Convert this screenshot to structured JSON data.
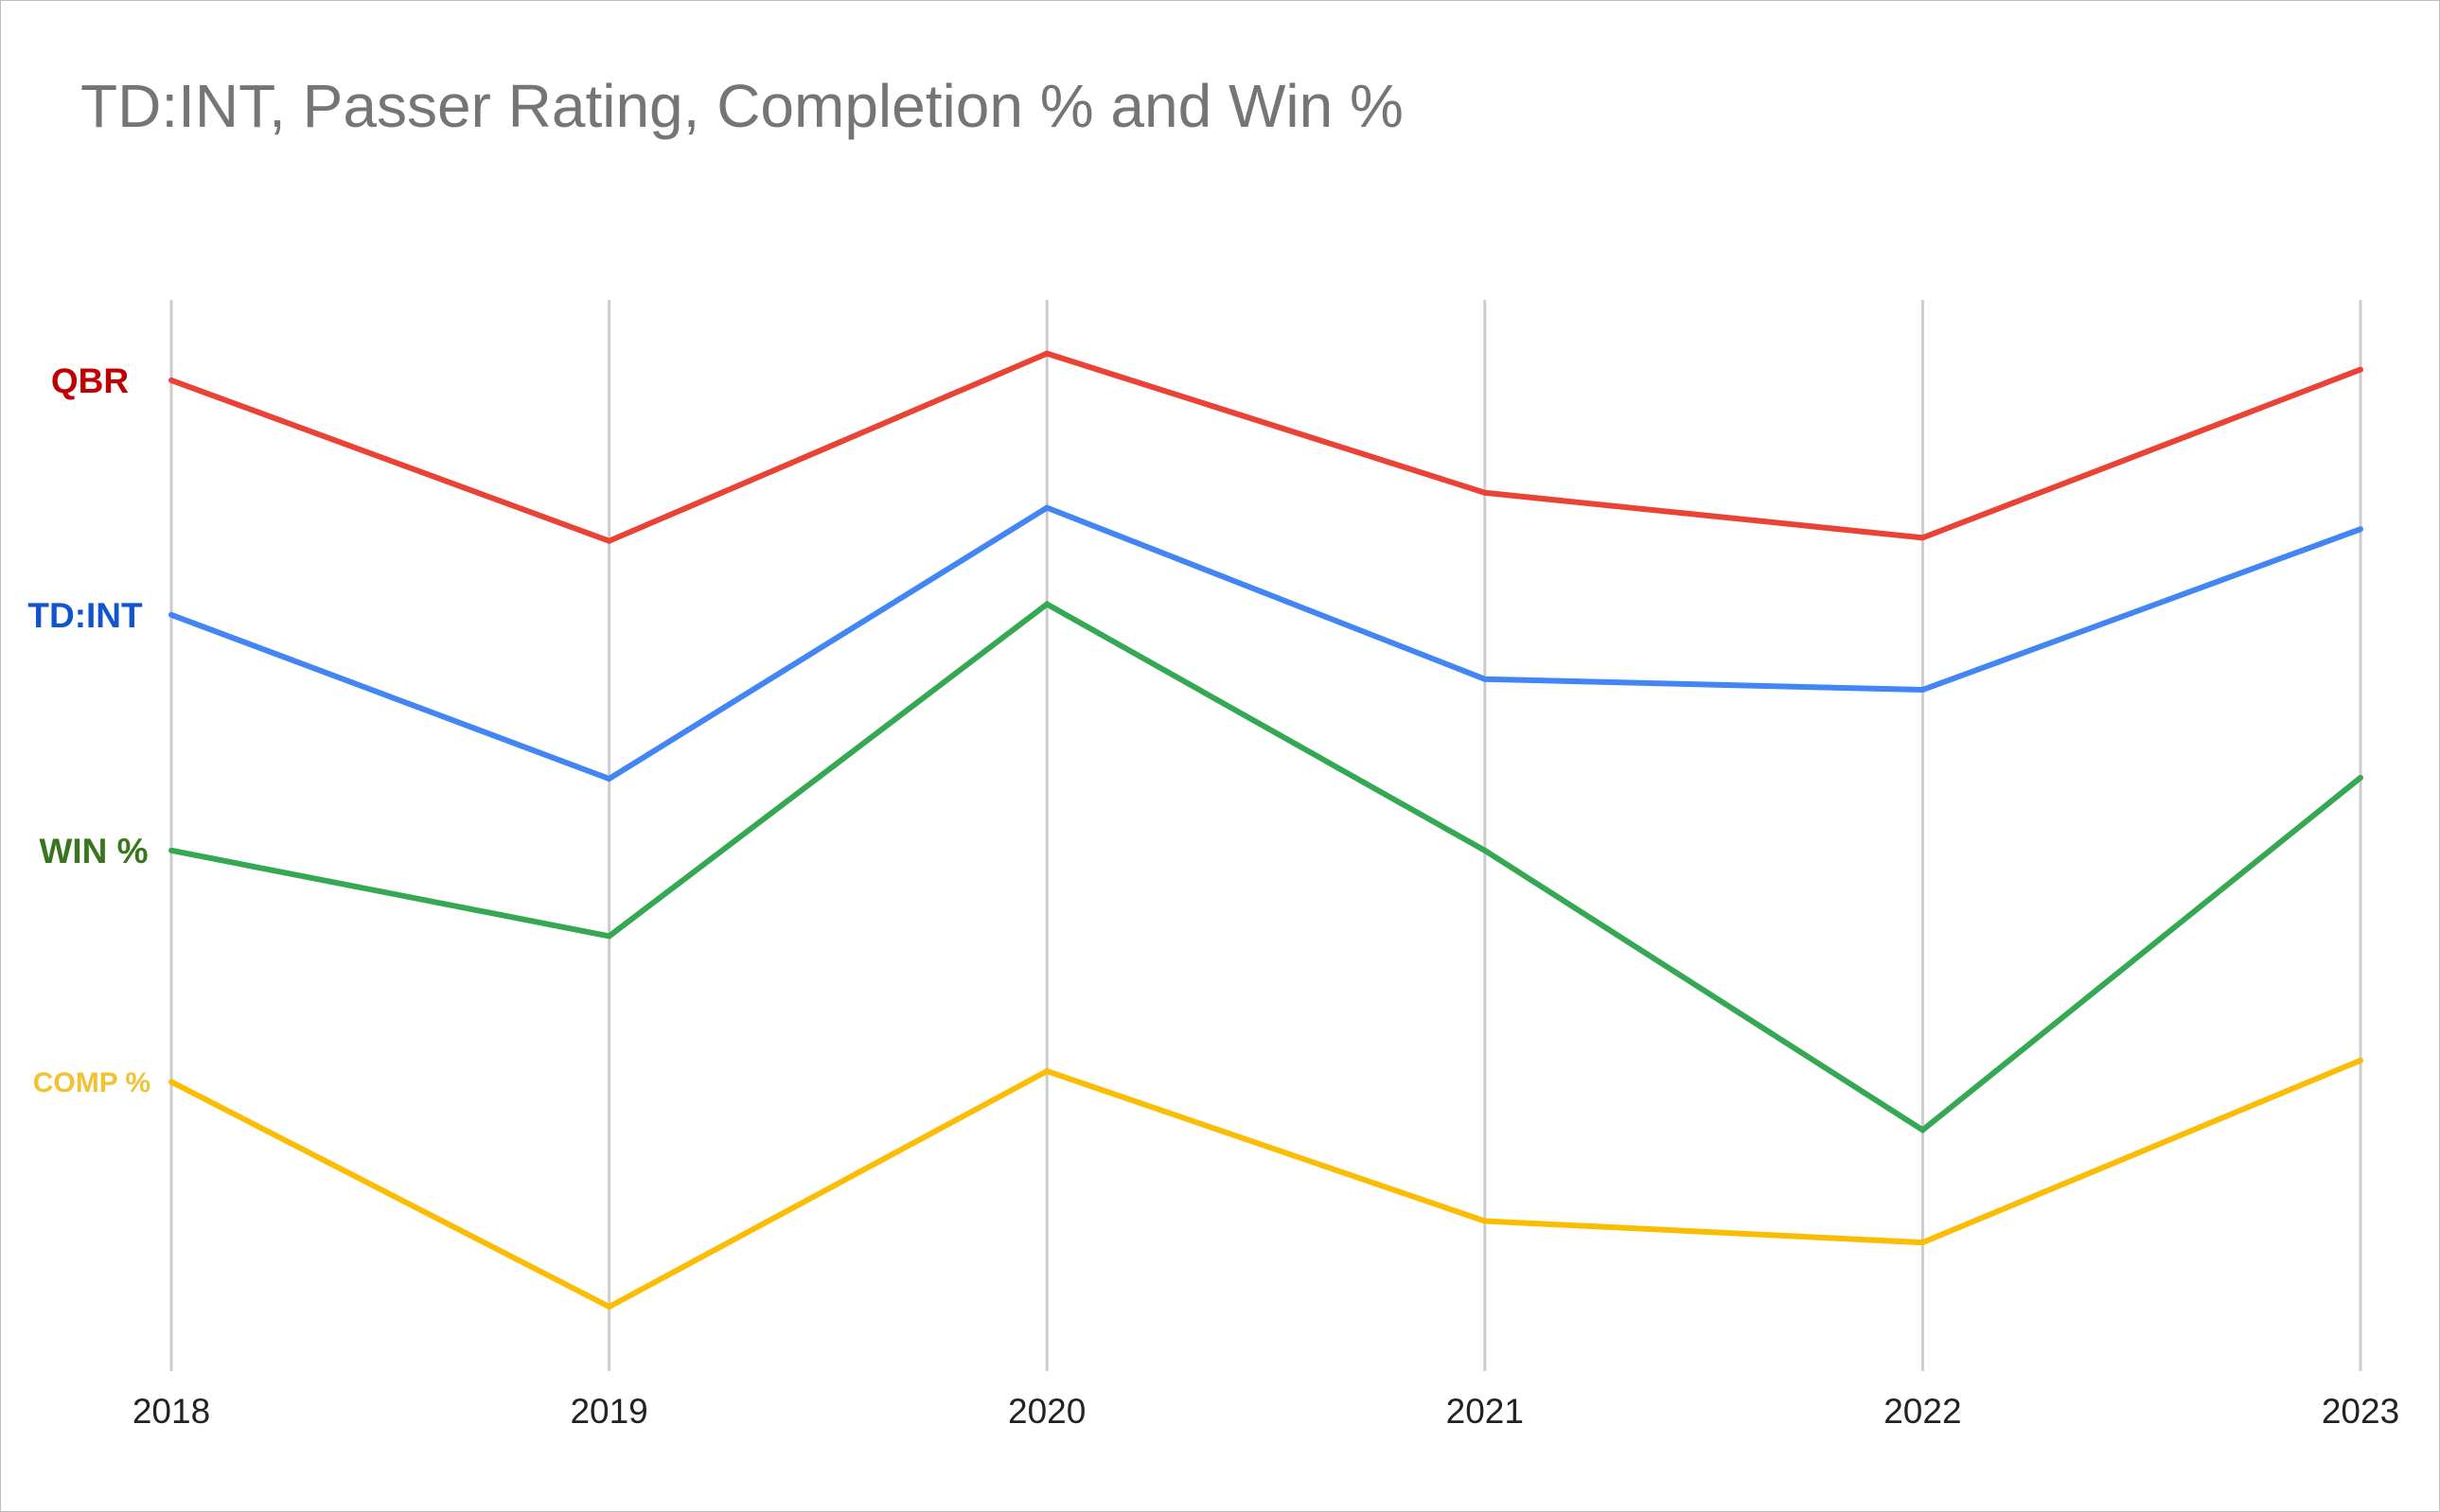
{
  "chart_data": {
    "type": "line",
    "title": "TD:INT, Passer Rating, Completion % and Win %",
    "xlabel": "",
    "ylabel": "",
    "x": [
      "2018",
      "2019",
      "2020",
      "2021",
      "2022",
      "2023"
    ],
    "ylim": [
      0,
      1
    ],
    "grid": {
      "vertical": true,
      "horizontal": false
    },
    "legend": "inline-left",
    "series": [
      {
        "name": "QBR",
        "color": "#ea4335",
        "label_color": "#c00000",
        "values": [
          0.925,
          0.775,
          0.95,
          0.82,
          0.778,
          0.935
        ]
      },
      {
        "name": "TD:INT",
        "color": "#4285f4",
        "label_color": "#1155cc",
        "values": [
          0.706,
          0.553,
          0.806,
          0.646,
          0.636,
          0.786
        ]
      },
      {
        "name": "WIN %",
        "color": "#34a853",
        "label_color": "#38761d",
        "values": [
          0.486,
          0.406,
          0.716,
          0.486,
          0.225,
          0.554
        ]
      },
      {
        "name": "COMP %",
        "color": "#fbbc04",
        "label_color": "#f1c232",
        "values": [
          0.27,
          0.06,
          0.28,
          0.14,
          0.12,
          0.29
        ]
      }
    ]
  }
}
